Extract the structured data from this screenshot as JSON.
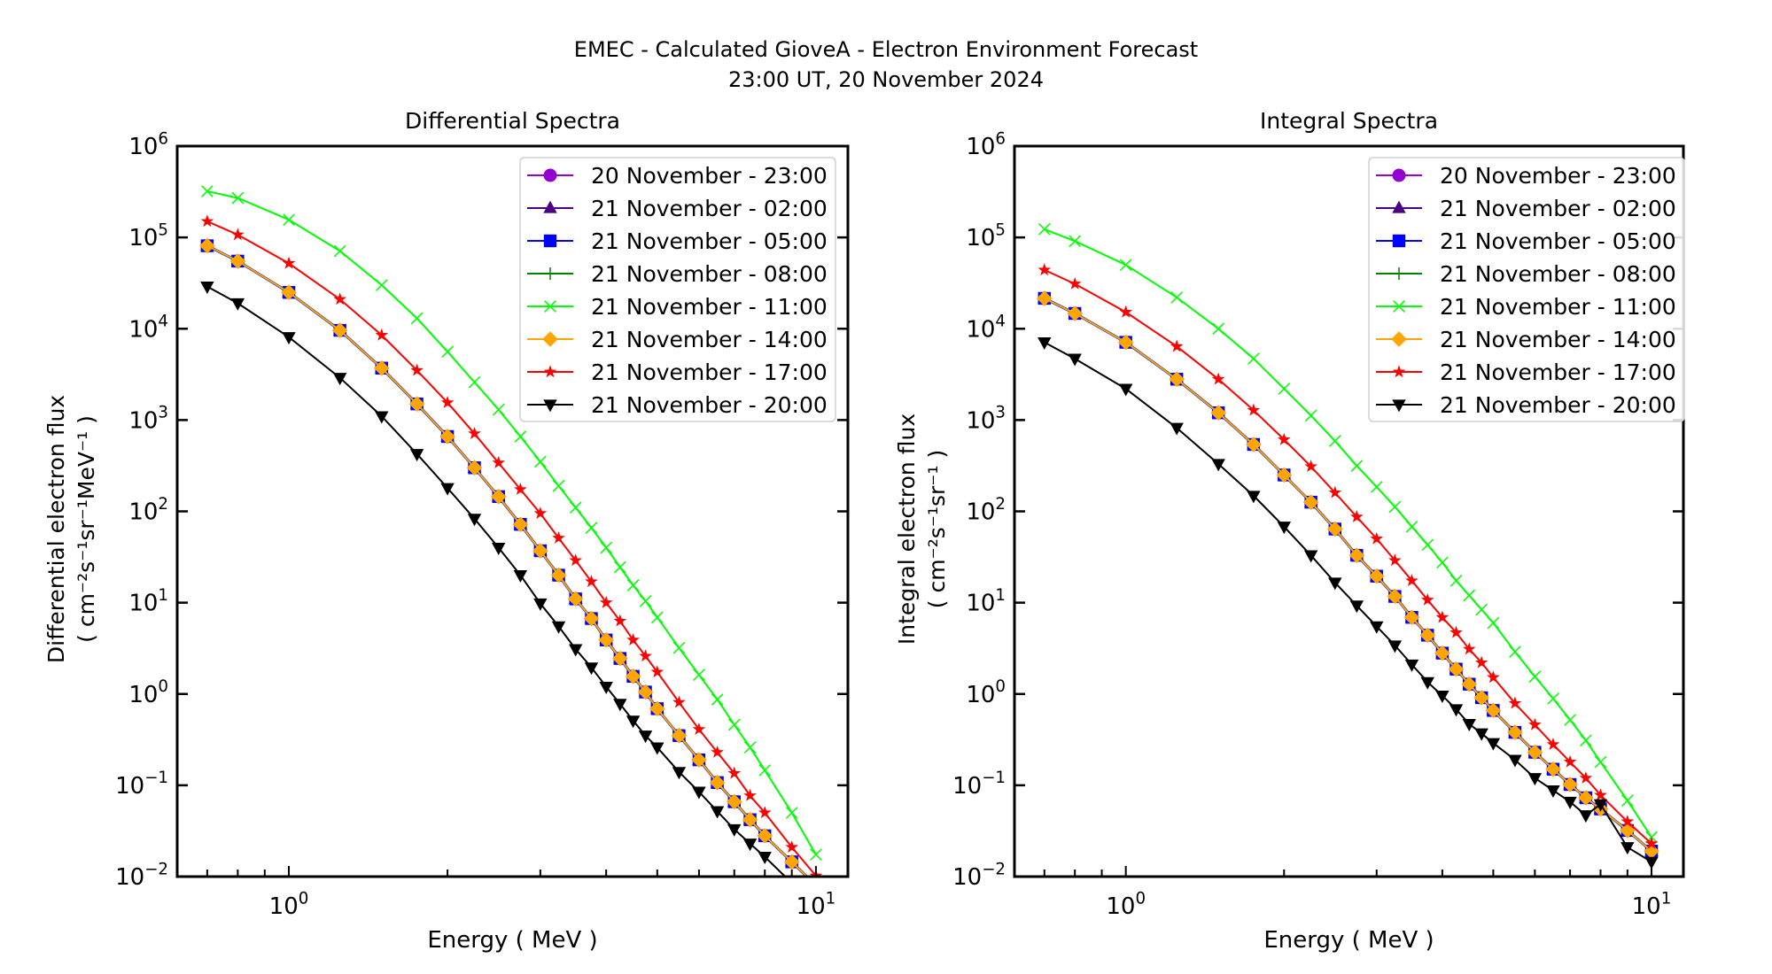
{
  "figure": {
    "title": "EMEC - Calculated GioveA - Electron Environment Forecast",
    "subtitle": "23:00 UT, 20 November 2024"
  },
  "legend_entries": [
    {
      "label": "20 November - 23:00",
      "color": "#9400d3",
      "marker": "circle"
    },
    {
      "label": "21 November - 02:00",
      "color": "#4b0082",
      "marker": "triangle-up"
    },
    {
      "label": "21 November - 05:00",
      "color": "#0000ff",
      "marker": "square"
    },
    {
      "label": "21 November - 08:00",
      "color": "#008000",
      "marker": "plus"
    },
    {
      "label": "21 November - 11:00",
      "color": "#00ff00",
      "marker": "x"
    },
    {
      "label": "21 November - 14:00",
      "color": "#ffa500",
      "marker": "diamond"
    },
    {
      "label": "21 November - 17:00",
      "color": "#ff0000",
      "marker": "star"
    },
    {
      "label": "21 November - 20:00",
      "color": "#000000",
      "marker": "triangle-down"
    }
  ],
  "chart_data": [
    {
      "type": "line",
      "title": "Differential Spectra",
      "xlabel": "Energy ( MeV )",
      "ylabel_line1": "Differential electron flux",
      "ylabel_line2": "( cm⁻²s⁻¹sr⁻¹MeV⁻¹ )",
      "xscale": "log",
      "yscale": "log",
      "xlim": [
        0.614,
        11.5
      ],
      "ylim": [
        0.01,
        1000000
      ],
      "xticks": [
        {
          "value": 1,
          "label": "10",
          "exp": "0"
        },
        {
          "value": 10,
          "label": "10",
          "exp": "1"
        }
      ],
      "yticks": [
        {
          "value": 0.01,
          "label": "10",
          "exp": "−2"
        },
        {
          "value": 0.1,
          "label": "10",
          "exp": "−1"
        },
        {
          "value": 1,
          "label": "10",
          "exp": "0"
        },
        {
          "value": 10,
          "label": "10",
          "exp": "1"
        },
        {
          "value": 100,
          "label": "10",
          "exp": "2"
        },
        {
          "value": 1000,
          "label": "10",
          "exp": "3"
        },
        {
          "value": 10000,
          "label": "10",
          "exp": "4"
        },
        {
          "value": 100000,
          "label": "10",
          "exp": "5"
        },
        {
          "value": 1000000,
          "label": "10",
          "exp": "6"
        }
      ],
      "grid": false,
      "legend_position": "top-right",
      "x": [
        0.7,
        0.8,
        1.0,
        1.25,
        1.5,
        1.75,
        2.0,
        2.25,
        2.5,
        2.75,
        3.0,
        3.25,
        3.5,
        3.75,
        4.0,
        4.25,
        4.5,
        4.75,
        5.0,
        5.5,
        6.0,
        6.5,
        7.0,
        7.5,
        8.0,
        9.0,
        10.0
      ],
      "series": [
        {
          "name": "20 November - 23:00",
          "values": [
            81000,
            55000,
            25000,
            9600,
            3700,
            1500,
            660,
            300,
            145,
            72,
            37,
            20,
            11,
            6.7,
            3.9,
            2.45,
            1.56,
            1.05,
            0.69,
            0.35,
            0.19,
            0.107,
            0.066,
            0.042,
            0.028,
            0.0145,
            0.008
          ]
        },
        {
          "name": "21 November - 02:00",
          "values": [
            81000,
            55000,
            25000,
            9600,
            3700,
            1500,
            660,
            300,
            145,
            72,
            37,
            20,
            11,
            6.7,
            3.9,
            2.45,
            1.56,
            1.05,
            0.69,
            0.35,
            0.19,
            0.107,
            0.066,
            0.042,
            0.028,
            0.0145,
            0.008
          ]
        },
        {
          "name": "21 November - 05:00",
          "values": [
            81000,
            55000,
            25000,
            9600,
            3700,
            1500,
            660,
            300,
            145,
            72,
            37,
            20,
            11,
            6.7,
            3.9,
            2.45,
            1.56,
            1.05,
            0.69,
            0.35,
            0.19,
            0.107,
            0.066,
            0.042,
            0.028,
            0.0145,
            0.008
          ]
        },
        {
          "name": "21 November - 08:00",
          "values": [
            81000,
            55000,
            25000,
            9600,
            3700,
            1500,
            660,
            300,
            145,
            72,
            37,
            20,
            11,
            6.7,
            3.9,
            2.45,
            1.56,
            1.05,
            0.69,
            0.35,
            0.19,
            0.107,
            0.066,
            0.042,
            0.028,
            0.0145,
            0.008
          ]
        },
        {
          "name": "21 November - 11:00",
          "values": [
            320000,
            270000,
            156000,
            71000,
            30000,
            13000,
            5600,
            2600,
            1300,
            660,
            350,
            190,
            110,
            66,
            40,
            24.5,
            15.5,
            10.4,
            6.9,
            3.2,
            1.62,
            0.87,
            0.46,
            0.26,
            0.146,
            0.05,
            0.0174
          ]
        },
        {
          "name": "21 November - 14:00",
          "values": [
            81000,
            55000,
            25000,
            9600,
            3700,
            1500,
            660,
            300,
            145,
            72,
            37,
            20,
            11,
            6.7,
            3.9,
            2.45,
            1.56,
            1.05,
            0.69,
            0.35,
            0.19,
            0.107,
            0.066,
            0.042,
            0.028,
            0.0145,
            0.008
          ]
        },
        {
          "name": "21 November - 17:00",
          "values": [
            150000,
            107000,
            52000,
            21000,
            8500,
            3500,
            1550,
            710,
            340,
            174,
            95,
            51,
            29,
            17,
            10,
            6.3,
            3.9,
            2.6,
            1.74,
            0.81,
            0.41,
            0.23,
            0.135,
            0.077,
            0.05,
            0.021,
            0.0102
          ]
        },
        {
          "name": "21 November - 20:00",
          "values": [
            29000,
            19000,
            8100,
            2900,
            1100,
            425,
            180,
            83,
            40,
            20,
            9.8,
            5.5,
            3.1,
            1.95,
            1.2,
            0.78,
            0.51,
            0.35,
            0.26,
            0.14,
            0.085,
            0.052,
            0.033,
            0.023,
            0.0165,
            0.0085,
            0.0045
          ]
        }
      ]
    },
    {
      "type": "line",
      "title": "Integral Spectra",
      "xlabel": "Energy ( MeV )",
      "ylabel_line1": "Integral electron flux",
      "ylabel_line2": "( cm⁻²s⁻¹sr⁻¹ )",
      "xscale": "log",
      "yscale": "log",
      "xlim": [
        0.614,
        11.5
      ],
      "ylim": [
        0.01,
        1000000
      ],
      "xticks": [
        {
          "value": 1,
          "label": "10",
          "exp": "0"
        },
        {
          "value": 10,
          "label": "10",
          "exp": "1"
        }
      ],
      "yticks": [
        {
          "value": 0.01,
          "label": "10",
          "exp": "−2"
        },
        {
          "value": 0.1,
          "label": "10",
          "exp": "−1"
        },
        {
          "value": 1,
          "label": "10",
          "exp": "0"
        },
        {
          "value": 10,
          "label": "10",
          "exp": "1"
        },
        {
          "value": 100,
          "label": "10",
          "exp": "2"
        },
        {
          "value": 1000,
          "label": "10",
          "exp": "3"
        },
        {
          "value": 10000,
          "label": "10",
          "exp": "4"
        },
        {
          "value": 100000,
          "label": "10",
          "exp": "5"
        },
        {
          "value": 1000000,
          "label": "10",
          "exp": "6"
        }
      ],
      "grid": false,
      "legend_position": "top-right",
      "x": [
        0.7,
        0.8,
        1.0,
        1.25,
        1.5,
        1.75,
        2.0,
        2.25,
        2.5,
        2.75,
        3.0,
        3.25,
        3.5,
        3.75,
        4.0,
        4.25,
        4.5,
        4.75,
        5.0,
        5.5,
        6.0,
        6.5,
        7.0,
        7.5,
        8.0,
        9.0,
        10.0
      ],
      "series": [
        {
          "name": "20 November - 23:00",
          "values": [
            21500,
            14700,
            7100,
            2800,
            1200,
            540,
            250,
            126,
            64,
            33,
            19.5,
            11.7,
            6.9,
            4.4,
            2.8,
            1.87,
            1.28,
            0.91,
            0.66,
            0.38,
            0.23,
            0.15,
            0.102,
            0.073,
            0.055,
            0.032,
            0.019
          ]
        },
        {
          "name": "21 November - 02:00",
          "values": [
            21500,
            14700,
            7100,
            2800,
            1200,
            540,
            250,
            126,
            64,
            33,
            19.5,
            11.7,
            6.9,
            4.4,
            2.8,
            1.87,
            1.28,
            0.91,
            0.66,
            0.38,
            0.23,
            0.15,
            0.102,
            0.073,
            0.055,
            0.032,
            0.019
          ]
        },
        {
          "name": "21 November - 05:00",
          "values": [
            21500,
            14700,
            7100,
            2800,
            1200,
            540,
            250,
            126,
            64,
            33,
            19.5,
            11.7,
            6.9,
            4.4,
            2.8,
            1.87,
            1.28,
            0.91,
            0.66,
            0.38,
            0.23,
            0.15,
            0.102,
            0.073,
            0.055,
            0.032,
            0.019
          ]
        },
        {
          "name": "21 November - 08:00",
          "values": [
            21500,
            14700,
            7100,
            2800,
            1200,
            540,
            250,
            126,
            64,
            33,
            19.5,
            11.7,
            6.9,
            4.4,
            2.8,
            1.87,
            1.28,
            0.91,
            0.66,
            0.38,
            0.23,
            0.15,
            0.102,
            0.073,
            0.055,
            0.032,
            0.019
          ]
        },
        {
          "name": "21 November - 11:00",
          "values": [
            123000,
            91000,
            50000,
            22000,
            10000,
            4700,
            2200,
            1120,
            590,
            315,
            185,
            112,
            68,
            43,
            27.5,
            17.4,
            12,
            8.4,
            6.0,
            2.9,
            1.55,
            0.89,
            0.52,
            0.31,
            0.18,
            0.068,
            0.027
          ]
        },
        {
          "name": "21 November - 14:00",
          "values": [
            21500,
            14700,
            7100,
            2800,
            1200,
            540,
            250,
            126,
            64,
            33,
            19.5,
            11.7,
            6.9,
            4.4,
            2.8,
            1.87,
            1.28,
            0.91,
            0.66,
            0.38,
            0.23,
            0.15,
            0.102,
            0.073,
            0.055,
            0.032,
            0.019
          ]
        },
        {
          "name": "21 November - 17:00",
          "values": [
            44000,
            31000,
            15200,
            6400,
            2800,
            1280,
            610,
            310,
            160,
            87,
            50,
            29,
            17.4,
            10.7,
            6.9,
            4.7,
            3.1,
            2.2,
            1.52,
            0.79,
            0.46,
            0.28,
            0.18,
            0.12,
            0.078,
            0.04,
            0.023
          ]
        },
        {
          "name": "21 November - 20:00",
          "values": [
            7100,
            4700,
            2200,
            820,
            330,
            148,
            68,
            33,
            16.6,
            9.3,
            5.5,
            3.4,
            2.1,
            1.35,
            0.96,
            0.68,
            0.47,
            0.37,
            0.29,
            0.19,
            0.12,
            0.088,
            0.066,
            0.047,
            0.062,
            0.021,
            0.0145
          ]
        }
      ]
    }
  ]
}
